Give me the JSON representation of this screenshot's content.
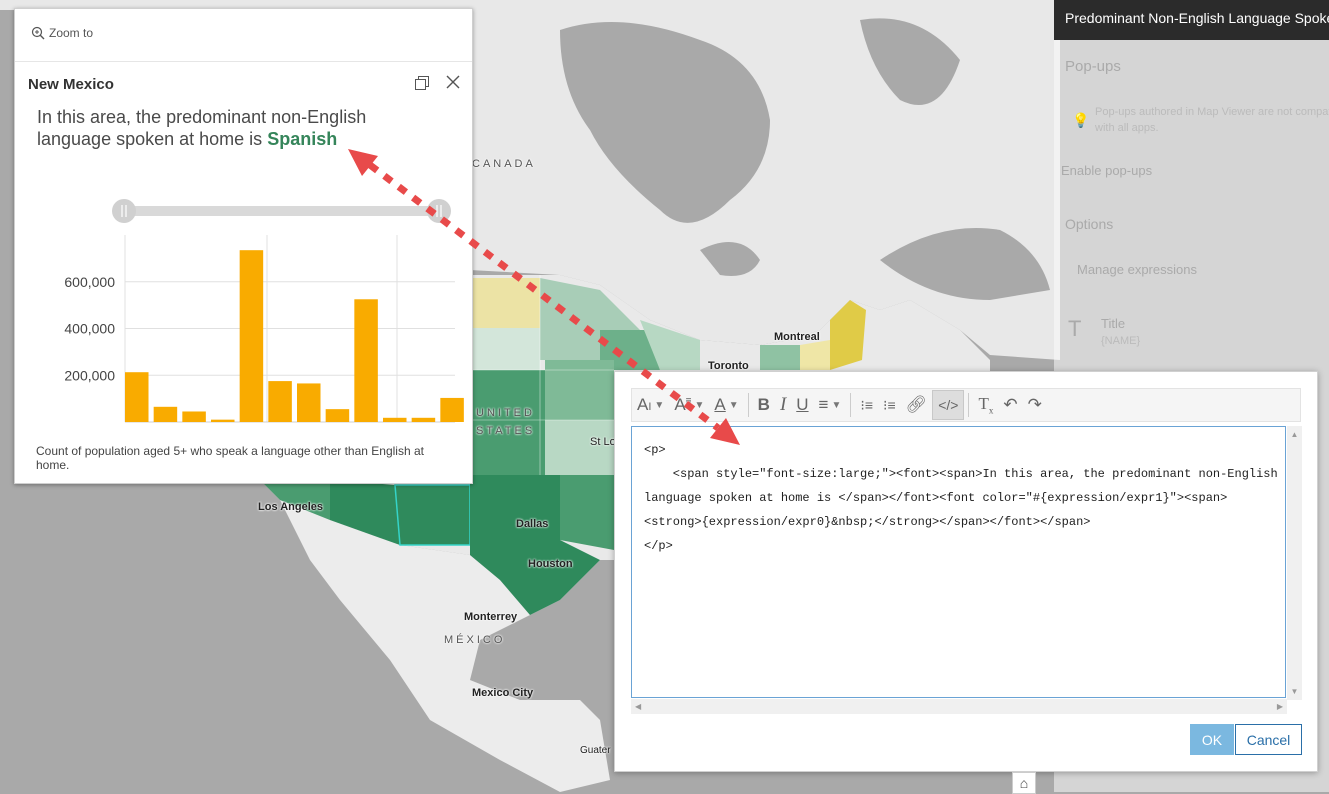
{
  "side_panel": {
    "header": "Predominant Non-English Language Spoken",
    "section": "Pop-ups",
    "notice_line1": "Pop-ups authored in Map Viewer are not compatible",
    "notice_line2": "with all apps.",
    "enable": "Enable pop-ups",
    "options": "Options",
    "manage": "Manage expressions",
    "title_label": "Title",
    "title_value": "{NAME}"
  },
  "map_labels": {
    "canada": "CANADA",
    "united": "UNITED",
    "states": "STATES",
    "mexico_country": "MÉXICO",
    "montreal": "Montreal",
    "toronto": "Toronto",
    "st_louis": "St Lo",
    "los_angeles": "Los Angeles",
    "dallas": "Dallas",
    "houston": "Houston",
    "monterrey": "Monterrey",
    "mexico_city": "Mexico City",
    "guatemala": "Guater"
  },
  "popup": {
    "zoom_to": "Zoom to",
    "title": "New Mexico",
    "body_prefix": "In this area, the predominant non-English language spoken at home is",
    "body_language": "Spanish",
    "caption": "Count of population aged 5+ who speak a language other than English at home."
  },
  "chart_data": {
    "type": "bar",
    "values": [
      213000,
      65000,
      45000,
      10000,
      735000,
      175000,
      165000,
      55000,
      525000,
      18000,
      18000,
      103000
    ],
    "ylim": [
      0,
      800000
    ],
    "yticks": [
      "200,000",
      "400,000",
      "600,000"
    ],
    "ytick_values": [
      200000,
      400000,
      600000
    ],
    "bar_color": "#f9ab00"
  },
  "editor": {
    "code_lines": [
      "<p>",
      "    <span style=\"font-size:large;\"><font><span>In this area, the predominant non-English",
      "language spoken at home is </span></font><font color=\"#{expression/expr1}\"><span>",
      "<strong>{expression/expr0}&nbsp;</strong></span></font></span>",
      "</p>"
    ],
    "ok": "OK",
    "cancel": "Cancel"
  },
  "colors": {
    "accent": "#35855a",
    "arrow": "#e84a4a",
    "ok": "#7bb8e0"
  }
}
